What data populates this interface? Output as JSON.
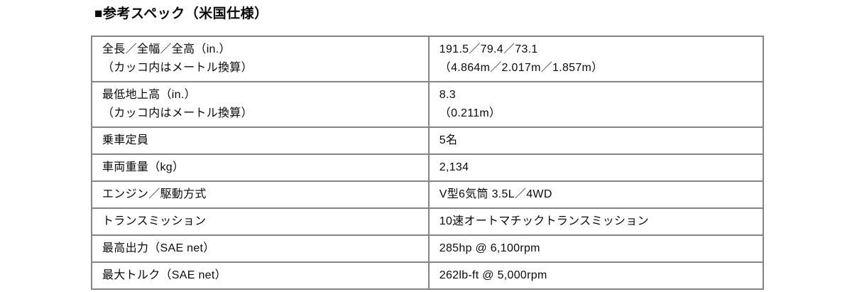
{
  "page": {
    "title": "■参考スペック（米国仕様）"
  },
  "table": {
    "rows": [
      {
        "label": "全長／全幅／全高（in.）",
        "label_note": "（カッコ内はメートル換算）",
        "value": "191.5／79.4／73.1",
        "value_note": "（4.864m／2.017m／1.857m）"
      },
      {
        "label": "最低地上高（in.）",
        "label_note": "（カッコ内はメートル換算）",
        "value": "8.3",
        "value_note": "（0.211m）"
      },
      {
        "label": "乗車定員",
        "value": "5名"
      },
      {
        "label": "車両重量（kg）",
        "value": "2,134"
      },
      {
        "label": "エンジン／駆動方式",
        "value": "V型6気筒 3.5L／4WD"
      },
      {
        "label": "トランスミッション",
        "value": "10速オートマチックトランスミッション"
      },
      {
        "label": "最高出力（SAE net）",
        "value": "285hp @ 6,100rpm"
      },
      {
        "label": "最大トルク（SAE net）",
        "value": "262lb-ft @ 5,000rpm"
      }
    ]
  }
}
